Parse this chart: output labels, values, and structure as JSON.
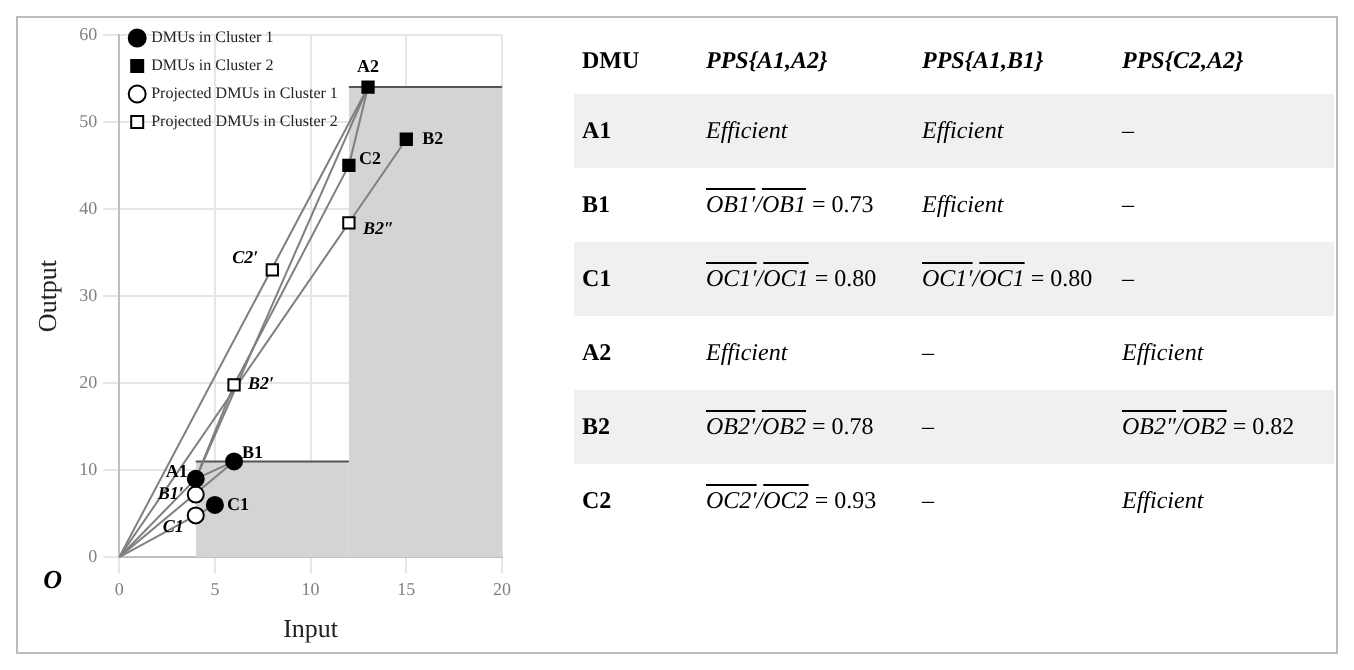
{
  "chart_data": [
    {
      "type": "scatter",
      "xlabel": "Input",
      "ylabel": "Output",
      "xlim": [
        0,
        20
      ],
      "ylim": [
        0,
        60
      ],
      "xticks": [
        0,
        5,
        10,
        15,
        20
      ],
      "yticks": [
        0,
        10,
        20,
        30,
        40,
        50,
        60
      ],
      "grid": true,
      "legend": "top left",
      "series": [
        {
          "type": "area",
          "color": "#d4d4d4",
          "x": [
            4,
            12
          ],
          "values": [
            11,
            11
          ]
        },
        {
          "type": "area",
          "color": "#d4d4d4",
          "x": [
            12,
            20
          ],
          "values": [
            54,
            54
          ]
        },
        {
          "type": "line",
          "color": "#7f7f7f",
          "marker": "none",
          "x": [
            0,
            13
          ],
          "values": [
            0,
            54
          ]
        },
        {
          "type": "line",
          "color": "#7f7f7f",
          "marker": "none",
          "x": [
            0,
            15
          ],
          "values": [
            0,
            48
          ]
        },
        {
          "type": "line",
          "color": "#7f7f7f",
          "marker": "none",
          "x": [
            0,
            6
          ],
          "values": [
            0,
            11
          ]
        },
        {
          "type": "line",
          "color": "#7f7f7f",
          "marker": "none",
          "x": [
            0,
            5
          ],
          "values": [
            0,
            6
          ]
        },
        {
          "type": "line",
          "color": "#7f7f7f",
          "marker": "none",
          "x": [
            0,
            4
          ],
          "values": [
            0,
            9
          ]
        },
        {
          "type": "line",
          "color": "#7f7f7f",
          "marker": "none",
          "x": [
            4,
            6
          ],
          "values": [
            9,
            11
          ]
        },
        {
          "type": "line",
          "color": "#7f7f7f",
          "marker": "none",
          "x": [
            4,
            6,
            12,
            13
          ],
          "values": [
            9,
            19.8,
            45,
            54
          ]
        },
        {
          "type": "line",
          "color": "#7f7f7f",
          "marker": "none",
          "x": [
            4,
            13
          ],
          "values": [
            9,
            54
          ]
        },
        {
          "name": "DMUs in Cluster 1",
          "type": "scatter",
          "marker": "circle",
          "color": "#000000",
          "x": [
            4,
            6,
            5
          ],
          "values": [
            9,
            11,
            6
          ]
        },
        {
          "name": "DMUs in Cluster 2",
          "type": "scatter",
          "marker": "square",
          "color": "#000000",
          "x": [
            13,
            15,
            12
          ],
          "values": [
            54,
            48,
            45
          ]
        },
        {
          "name": "Projected DMUs in Cluster 1",
          "type": "scatter",
          "marker": "circle",
          "color": "#ffffff",
          "x": [
            4,
            4
          ],
          "values": [
            7.2,
            4.8
          ]
        },
        {
          "name": "Projected DMUs in Cluster 2",
          "type": "scatter",
          "marker": "square",
          "color": "#ffffff",
          "x": [
            8,
            6,
            12
          ],
          "values": [
            33,
            19.8,
            38.4
          ]
        }
      ],
      "annotations": [
        {
          "text": "O",
          "x": 0,
          "y": 0
        },
        {
          "text": "A1",
          "x": 4,
          "y": 9
        },
        {
          "text": "B1",
          "x": 6,
          "y": 11
        },
        {
          "text": "C1",
          "x": 5,
          "y": 6
        },
        {
          "text": "A2",
          "x": 13,
          "y": 54
        },
        {
          "text": "B2",
          "x": 15,
          "y": 48
        },
        {
          "text": "C2",
          "x": 12,
          "y": 45
        },
        {
          "text": "B1′",
          "x": 4,
          "y": 7.2
        },
        {
          "text": "C1",
          "x": 4,
          "y": 4.8
        },
        {
          "text": "C2′",
          "x": 8,
          "y": 33
        },
        {
          "text": "B2′",
          "x": 6,
          "y": 19.8
        },
        {
          "text": "B2″",
          "x": 12,
          "y": 38.4
        }
      ]
    },
    {
      "type": "other",
      "annotations": [
        "DMU",
        "PPS{A1,A2}",
        "PPS{A1,B1}",
        "PPS{C2,A2}",
        "A1",
        "Efficient",
        "Efficient",
        "–",
        "B1",
        "OB1′/OB1 = 0.73",
        "Efficient",
        "–",
        "C1",
        "OC1′/OC1 = 0.80",
        "OC1′/OC1 = 0.80",
        "–",
        "A2",
        "Efficient",
        "–",
        "Efficient",
        "B2",
        "OB2′/OB2 = 0.78",
        "–",
        "OB2″/OB2 = 0.82",
        "C2",
        "OC2′/OC2 = 0.93",
        "–",
        "Efficient"
      ]
    }
  ]
}
